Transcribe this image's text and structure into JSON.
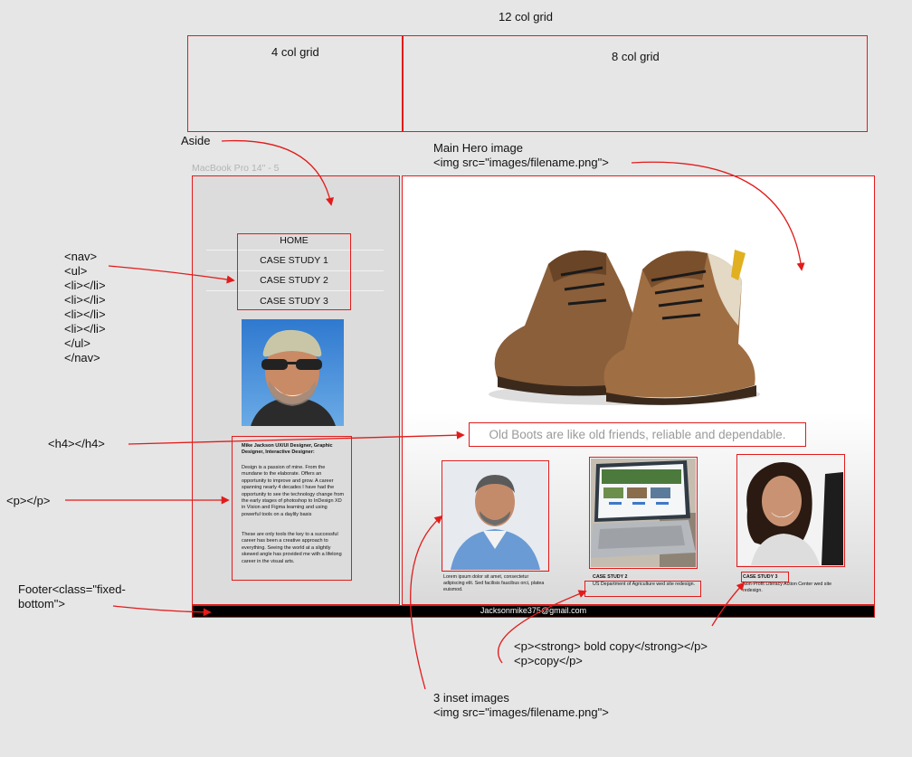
{
  "grid": {
    "title": "12 col grid",
    "left_label": "4 col grid",
    "right_label": "8 col grid"
  },
  "annotations": {
    "aside": "Aside",
    "hero_title": "Main Hero image",
    "hero_code": "<img src=\"images/filename.png\">",
    "nav_code": [
      "<nav>",
      "<ul>",
      "<li></li>",
      "<li></li>",
      "<li></li>",
      "<li></li>",
      "</ul>",
      "</nav>"
    ],
    "h4_code": "<h4></h4>",
    "p_code": "<p></p>",
    "footer_code": [
      "Footer<class=\"fixed-",
      "bottom\">"
    ],
    "bold_copy_code": "<p><strong> bold copy</strong></p>",
    "copy_code": "<p>copy</p>",
    "inset_title": "3 inset images",
    "inset_code": "<img src=\"images/filename.png\">"
  },
  "frame": {
    "label": "MacBook Pro 14\" - 5"
  },
  "nav": {
    "items": [
      "HOME",
      "CASE STUDY 1",
      "CASE STUDY 2",
      "CASE STUDY 3"
    ]
  },
  "bio": {
    "title": "Mike Jackson UX/UI Designer, Graphic Designer, Interactive Designer:",
    "p1": "Design is a passion of mine. From the mundane to the elaborate. Offers an opportunity to improve and grow. A career spanning nearly 4 decades I have had the opportunity to see the technology change from the early stages of photoshop to InDesign XD in Vision and Figma learning and using powerful tools on a daylily basis",
    "p2": "These are only tools the key to a successful career has been a creative approach to everything. Seeing the world at a slightly skewed angle has provided me with a lifelong career in the visual arts."
  },
  "hero": {
    "tagline": "Old Boots are like old friends, reliable and dependable."
  },
  "cards": {
    "c1_text": "Lorem ipsum dolor sit amet, consectetur adipiscing elit. Sed facilisis faucibus orci, platea euismod.",
    "c2_title": "CASE STUDY 2",
    "c2_text": "US Department of Agriculture wed site redesign.",
    "c3_title": "CASE STUDY 3",
    "c3_text": "Non-Profit Literacy Action Center wed site redesign."
  },
  "footer": {
    "email": "Jacksonmike375@gmail.com"
  },
  "colors": {
    "annotation_red": "#e21b1b",
    "frame_gray": "#dcdcdc",
    "footer_black": "#000000"
  }
}
